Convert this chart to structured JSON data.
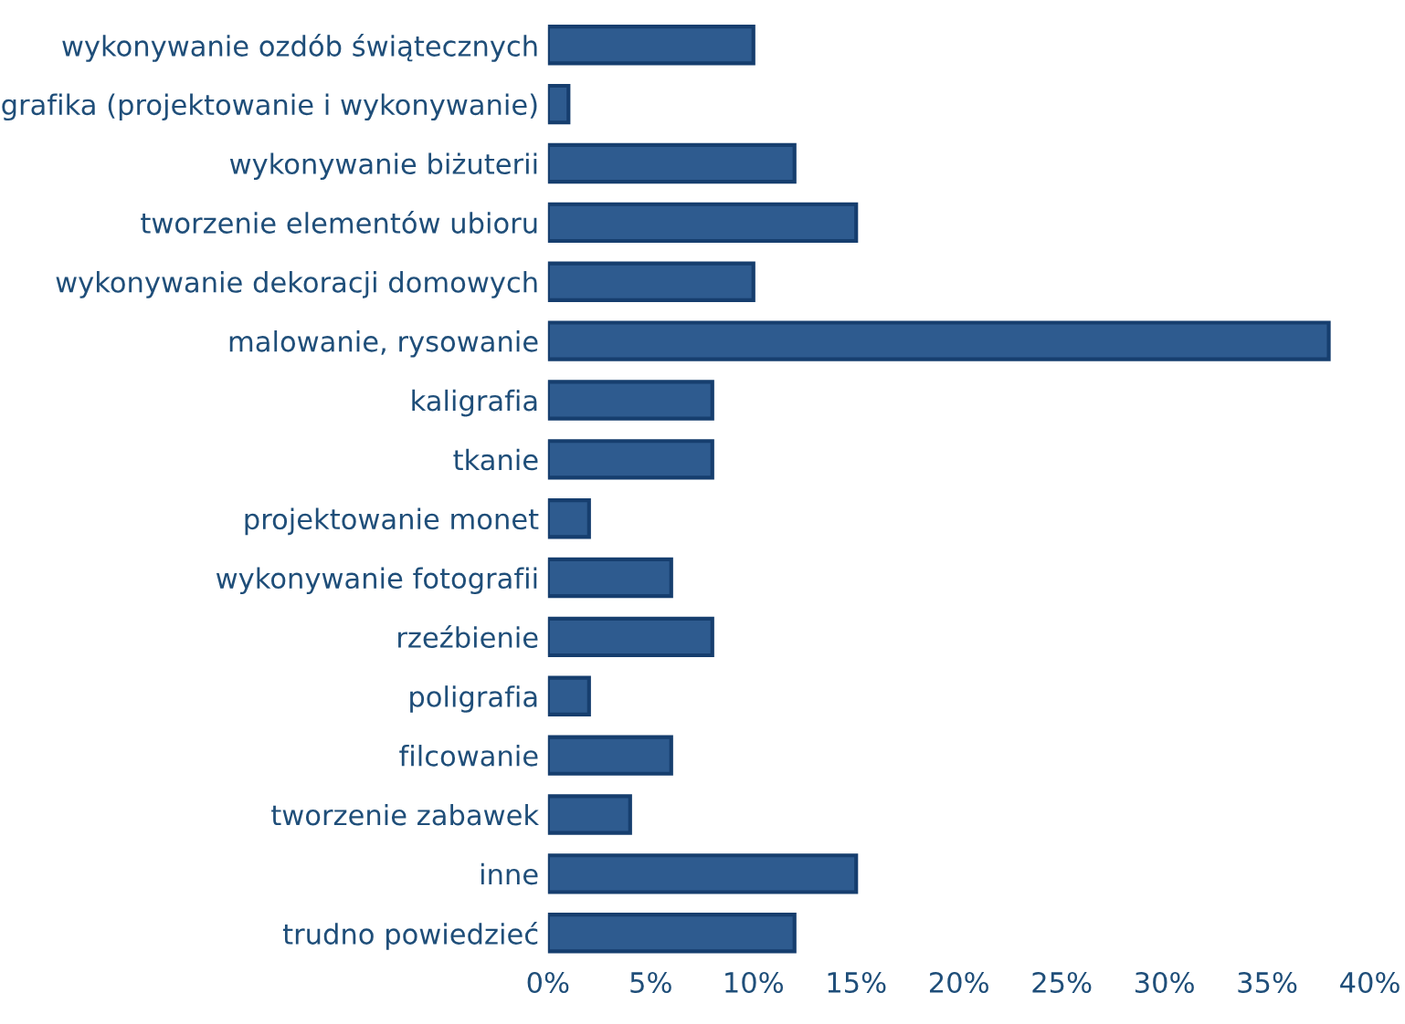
{
  "chart_data": {
    "type": "bar",
    "orientation": "horizontal",
    "categories": [
      "wykonywanie ozdób świątecznych",
      "grafika (projektowanie i wykonywanie)",
      "wykonywanie biżuterii",
      "tworzenie elementów ubioru",
      "wykonywanie dekoracji domowych",
      "malowanie, rysowanie",
      "kaligrafia",
      "tkanie",
      "projektowanie monet",
      "wykonywanie fotografii",
      "rzeźbienie",
      "poligrafia",
      "filcowanie",
      "tworzenie zabawek",
      "inne",
      "trudno powiedzieć"
    ],
    "values": [
      10,
      1,
      12,
      15,
      10,
      38,
      8,
      8,
      2,
      6,
      8,
      2,
      6,
      4,
      15,
      12
    ],
    "color": "#2e5b8f",
    "xlim": [
      0,
      40
    ],
    "xticks": [
      {
        "value": 0,
        "label": "0%"
      },
      {
        "value": 5,
        "label": "5%"
      },
      {
        "value": 10,
        "label": "10%"
      },
      {
        "value": 15,
        "label": "15%"
      },
      {
        "value": 20,
        "label": "20%"
      },
      {
        "value": 25,
        "label": "25%"
      },
      {
        "value": 30,
        "label": "30%"
      },
      {
        "value": 35,
        "label": "35%"
      },
      {
        "value": 40,
        "label": "40%"
      }
    ],
    "grid": false,
    "legend": false
  }
}
